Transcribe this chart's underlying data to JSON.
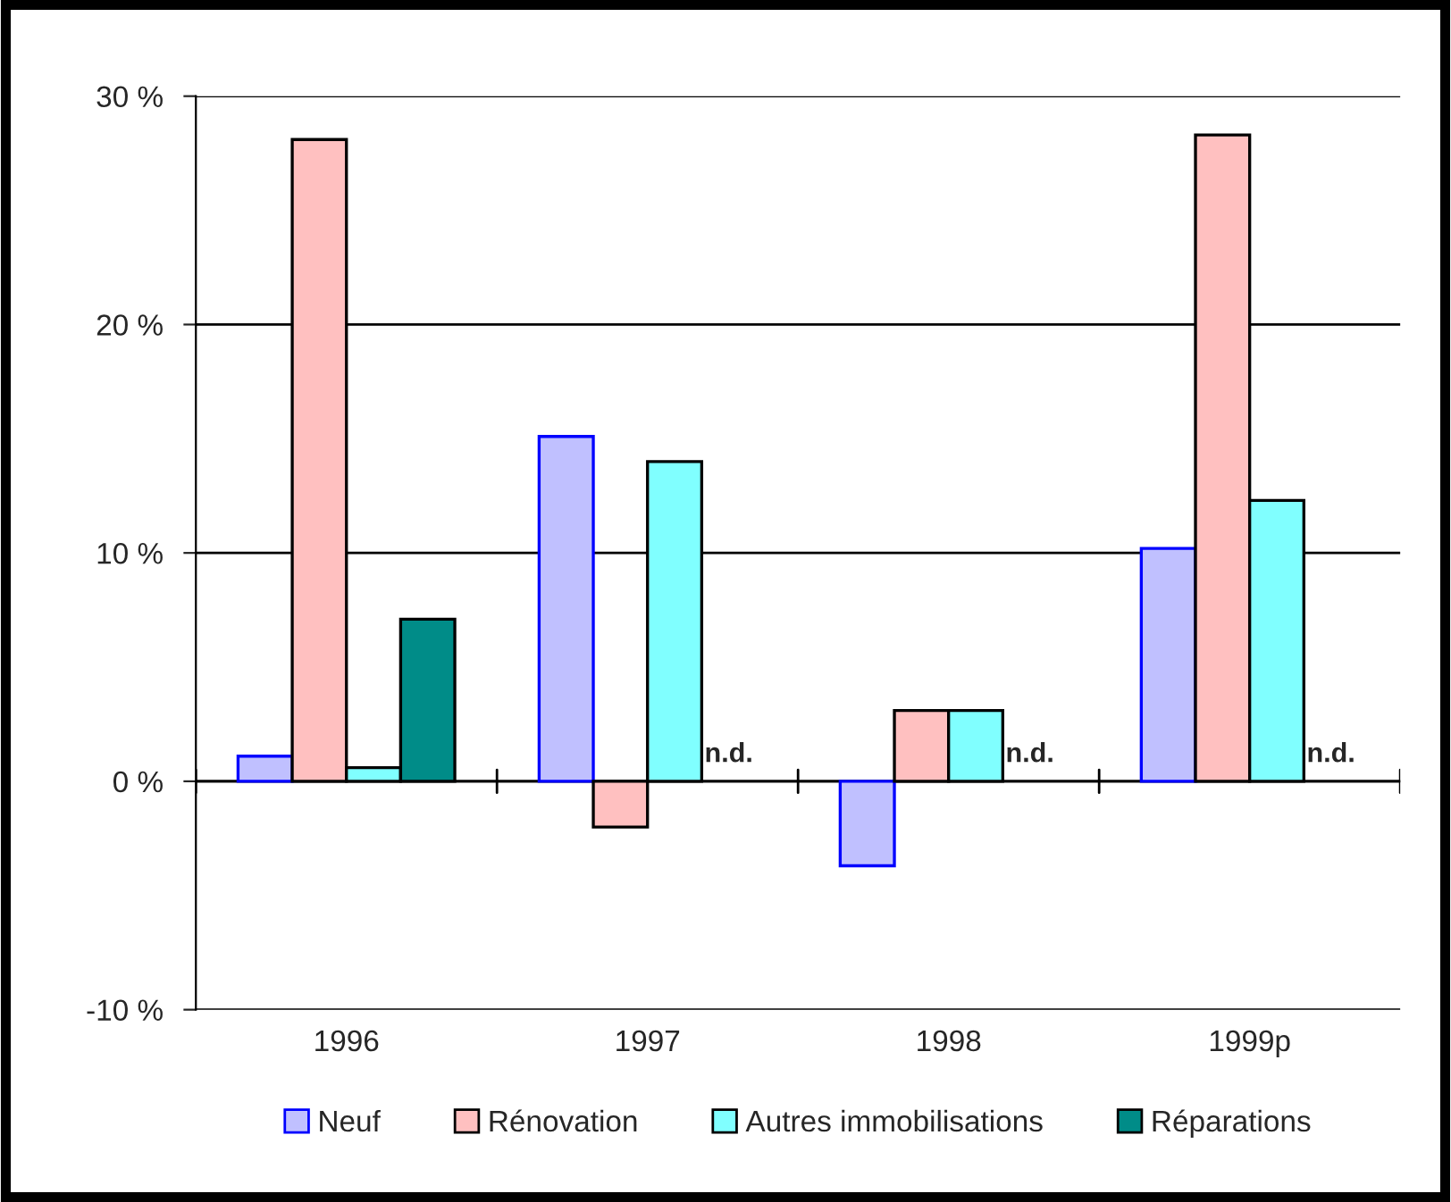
{
  "chart_data": {
    "type": "bar",
    "categories": [
      "1996",
      "1997",
      "1998",
      "1999p"
    ],
    "series": [
      {
        "name": "Neuf",
        "color": "#c0c0ff",
        "values": [
          1.1,
          15.1,
          -3.7,
          10.2
        ]
      },
      {
        "name": "Rénovation",
        "color": "#ffc0c0",
        "values": [
          28.1,
          -2.0,
          3.1,
          28.3
        ]
      },
      {
        "name": "Autres immobilisations",
        "color": "#80ffff",
        "values": [
          0.6,
          14.0,
          3.1,
          12.3
        ]
      },
      {
        "name": "Réparations",
        "color": "#008c88",
        "values": [
          7.1,
          null,
          null,
          null
        ],
        "value_labels": [
          null,
          "n.d.",
          "n.d.",
          "n.d."
        ]
      }
    ],
    "ylim": [
      -10,
      30
    ],
    "yticks": [
      {
        "value": -10,
        "label": "-10 %"
      },
      {
        "value": 0,
        "label": "0 %"
      },
      {
        "value": 10,
        "label": "10 %"
      },
      {
        "value": 20,
        "label": "20 %"
      },
      {
        "value": 30,
        "label": "30 %"
      }
    ],
    "grid": "y",
    "legend": "bottom"
  }
}
